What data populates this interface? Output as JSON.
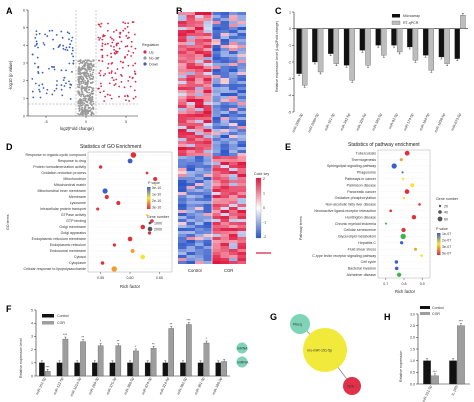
{
  "panels": {
    "A": {
      "label": "A",
      "xlabel": "log2(Fold change)",
      "ylabel": "-log10 (p value)",
      "xticks": [
        "-5",
        "0",
        "5"
      ],
      "yticks": [
        "0",
        "1",
        "2",
        "3",
        "4",
        "5",
        "6"
      ],
      "legend_title": "Regulation",
      "legend": [
        {
          "label": "Up",
          "color": "#d62a4a"
        },
        {
          "label": "No diff",
          "color": "#9a9a9a"
        },
        {
          "label": "Down",
          "color": "#3a5fb5"
        }
      ]
    },
    "B": {
      "label": "B",
      "columns": [
        "Control",
        "CGR"
      ],
      "colorkey_title": "Color key",
      "colorkey_ticks": [
        "2",
        "1",
        "0",
        "-1",
        "-2"
      ],
      "colors": {
        "high": "#e0143c",
        "mid": "#ffffff",
        "low": "#2a55c8"
      }
    },
    "C": {
      "label": "C",
      "ylabel": "Relative expression level (Log2Fold change)",
      "yticks": [
        "1",
        "0",
        "-1",
        "-2",
        "-3",
        "-4",
        "-5"
      ],
      "legend": [
        {
          "label": "Microarray",
          "color": "#111111"
        },
        {
          "label": "RT-qPCR",
          "color": "#bdbdbd"
        }
      ],
      "categories": [
        "miR-200b-3p",
        "miR-200b-5p",
        "miR-151-3p",
        "miR-342-5p",
        "miR-32b-5p",
        "miR-345-5p",
        "miR-92-5p",
        "miR-174-5p",
        "miR-184-5p",
        "miR-1839-5p",
        "miR-673-5p"
      ],
      "series": [
        {
          "name": "Microarray",
          "values": [
            -2.7,
            -2.0,
            -1.5,
            -2.2,
            -1.3,
            -1.0,
            -1.0,
            -1.1,
            -1.6,
            -1.7,
            -1.8
          ]
        },
        {
          "name": "RT-qPCR",
          "values": [
            -3.4,
            -2.6,
            -2.1,
            -3.1,
            -2.2,
            -1.6,
            -1.4,
            -1.9,
            -2.5,
            -2.1,
            0.8
          ]
        }
      ],
      "ylim": [
        -5,
        1
      ]
    },
    "D": {
      "label": "D",
      "title": "Statistics of GO Enrichment",
      "xlabel": "Rich factor",
      "ylabel": "GO terms",
      "xticks": [
        "0.55",
        "0.60",
        "0.65"
      ],
      "terms": [
        "Response to organic cyclic compound",
        "Response to drug",
        "Protein homodimerization activity",
        "Oxidation-reduction process",
        "Mitochondrion",
        "Mitochondrial matrix",
        "Mitochondrial inner membrane",
        "Membrane",
        "Lysosome",
        "Intracellular protein transport",
        "GTPase activity",
        "GTP binding",
        "Golgi membrane",
        "Golgi apparatus",
        "Endoplasmic reticulum membrane",
        "Endoplasmic reticulum",
        "Endosomal membrane",
        "Cytosol",
        "Cytoplasm",
        "Cellular response to lipopolysaccharide"
      ],
      "legend_pvalue_title": "P value",
      "legend_pvalue_ticks": [
        "5e-10",
        "1e-10",
        "2e-10",
        "3e-10"
      ],
      "legend_gene_title": "Gene number",
      "legend_gene_ticks": [
        "1000",
        "2000"
      ]
    },
    "E": {
      "label": "E",
      "title": "Statistics of pathway enrichment",
      "xlabel": "Rich factor",
      "ylabel": "Pathway terms",
      "xticks": [
        "0.7",
        "0.8",
        "0.9"
      ],
      "terms": [
        "Tuberculosis",
        "Thermogenesis",
        "Sphingolipid signaling pathway",
        "Phagosome",
        "Pathways in cancer",
        "Parkinson disease",
        "Pancreatic cancer",
        "Oxidative phosphorylation",
        "Non-alcoholic fatty liver disease",
        "Neuroactive ligand-receptor interaction",
        "Huntington disease",
        "Chronic myeloid leukemia",
        "Cellular senescence",
        "Glycerolipid metabolism",
        "Hepatitis C",
        "Fluid shear stress",
        "C-type lectin receptor signaling pathway",
        "Cell cycle",
        "Bacterial invasion",
        "Alzheimer disease"
      ],
      "legend_gene_title": "Gene number",
      "legend_gene_ticks": [
        "20",
        "40",
        "60"
      ],
      "legend_pvalue_title": "P value",
      "legend_pvalue_ticks": [
        "1e-07",
        "2e-07",
        "3e-07",
        "5e-07"
      ]
    },
    "F": {
      "label": "F",
      "ylabel": "Relative expression level",
      "yticks": [
        "0",
        "1",
        "2",
        "3",
        "4",
        "5"
      ],
      "legend": [
        {
          "label": "Control",
          "color": "#111111"
        },
        {
          "label": "CGR",
          "color": "#9e9e9e"
        }
      ],
      "categories": [
        "miR-151-5p",
        "miR-122-5p",
        "miR-101a-3p",
        "miR-200-3p",
        "miR-375-3p",
        "miR-380-5p",
        "miR-874-3p",
        "miR-324-5p",
        "miR-382-5p",
        "miR-361-3p",
        "miR-190-3p"
      ],
      "series": [
        {
          "name": "Control",
          "values": [
            1.0,
            1.0,
            1.0,
            1.0,
            1.0,
            1.0,
            1.0,
            1.0,
            1.0,
            1.0,
            1.0
          ]
        },
        {
          "name": "CGR",
          "values": [
            0.35,
            2.8,
            2.6,
            2.3,
            2.3,
            1.9,
            2.1,
            3.6,
            3.9,
            2.5,
            1.1
          ]
        }
      ],
      "significance": [
        "***",
        "***",
        "**",
        "*",
        "**",
        "*",
        "**",
        "**",
        "***",
        "*",
        ""
      ],
      "ylim": [
        0,
        5
      ],
      "key_labels": [
        "mRNA",
        "miRNA"
      ]
    },
    "G": {
      "label": "G",
      "nodes": [
        {
          "label": "Pikcq",
          "color": "#7fd3b6"
        },
        {
          "label": "rno-miR-151-5p",
          "color": "#f2ea3a"
        },
        {
          "label": "Il2rb",
          "color": "#e0304a"
        }
      ]
    },
    "H": {
      "label": "H",
      "ylabel": "Relative expression",
      "yticks": [
        "0.0",
        "0.5",
        "1.0",
        "1.5",
        "2.0",
        "2.5",
        "3.0"
      ],
      "legend": [
        {
          "label": "Control",
          "color": "#111111"
        },
        {
          "label": "CGR",
          "color": "#9e9e9e"
        }
      ],
      "categories": [
        "miR-151-5p",
        "IL-2Rb"
      ],
      "series": [
        {
          "name": "Control",
          "values": [
            1.0,
            1.0
          ]
        },
        {
          "name": "CGR",
          "values": [
            0.35,
            2.5
          ]
        }
      ],
      "significance": [
        "***",
        "***"
      ],
      "ylim": [
        0,
        3
      ]
    }
  },
  "chart_data": [
    {
      "type": "bar",
      "panel": "C",
      "categories": [
        "miR-200b-3p",
        "miR-200b-5p",
        "miR-151-3p",
        "miR-342-5p",
        "miR-32b-5p",
        "miR-345-5p",
        "miR-92-5p",
        "miR-174-5p",
        "miR-184-5p",
        "miR-1839-5p",
        "miR-673-5p"
      ],
      "series": [
        {
          "name": "Microarray",
          "values": [
            -2.7,
            -2.0,
            -1.5,
            -2.2,
            -1.3,
            -1.0,
            -1.0,
            -1.1,
            -1.6,
            -1.7,
            -1.8
          ]
        },
        {
          "name": "RT-qPCR",
          "values": [
            -3.4,
            -2.6,
            -2.1,
            -3.1,
            -2.2,
            -1.6,
            -1.4,
            -1.9,
            -2.5,
            -2.1,
            0.8
          ]
        }
      ],
      "ylabel": "Relative expression level (Log2Fold change)",
      "ylim": [
        -5,
        1
      ]
    },
    {
      "type": "bar",
      "panel": "F",
      "categories": [
        "miR-151-5p",
        "miR-122-5p",
        "miR-101a-3p",
        "miR-200-3p",
        "miR-375-3p",
        "miR-380-5p",
        "miR-874-3p",
        "miR-324-5p",
        "miR-382-5p",
        "miR-361-3p",
        "miR-190-3p"
      ],
      "series": [
        {
          "name": "Control",
          "values": [
            1,
            1,
            1,
            1,
            1,
            1,
            1,
            1,
            1,
            1,
            1
          ]
        },
        {
          "name": "CGR",
          "values": [
            0.35,
            2.8,
            2.6,
            2.3,
            2.3,
            1.9,
            2.1,
            3.6,
            3.9,
            2.5,
            1.1
          ]
        }
      ],
      "ylabel": "Relative expression level",
      "ylim": [
        0,
        5
      ]
    },
    {
      "type": "bar",
      "panel": "H",
      "categories": [
        "miR-151-5p",
        "IL-2Rb"
      ],
      "series": [
        {
          "name": "Control",
          "values": [
            1.0,
            1.0
          ]
        },
        {
          "name": "CGR",
          "values": [
            0.35,
            2.5
          ]
        }
      ],
      "ylabel": "Relative expression",
      "ylim": [
        0,
        3
      ]
    }
  ]
}
